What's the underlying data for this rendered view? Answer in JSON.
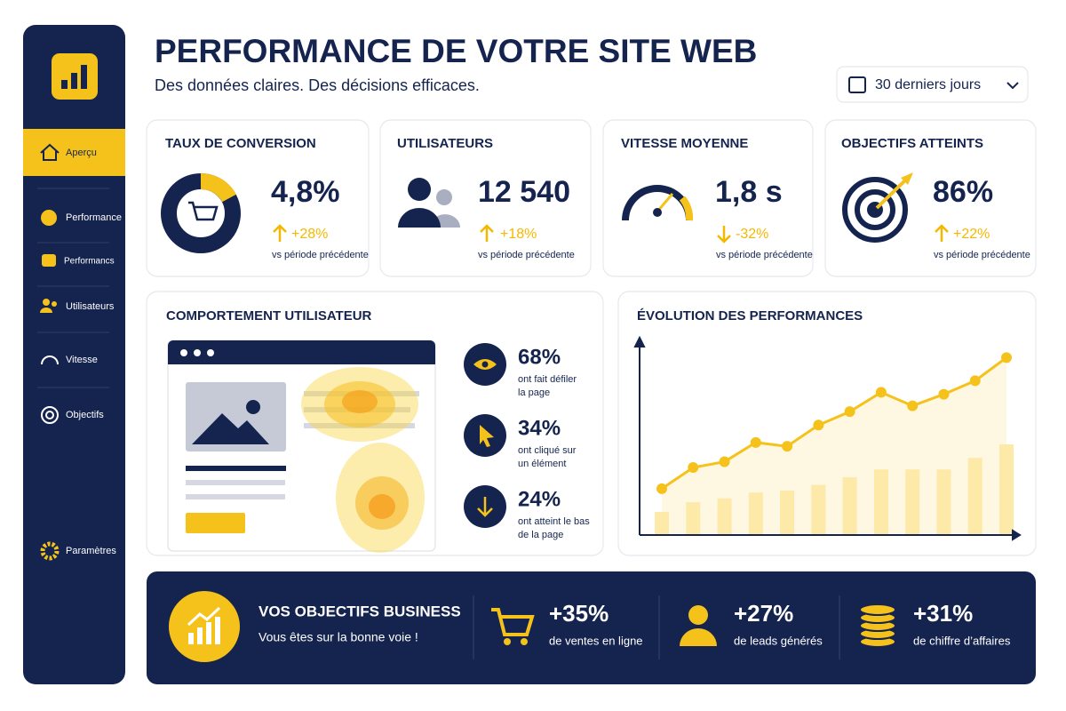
{
  "header": {
    "title": "PERFORMANCE DE VOTRE SITE WEB",
    "subtitle": "Des données claires. Des décisions efficaces.",
    "date_range": "30 derniers jours"
  },
  "sidebar": {
    "items": [
      "Aperçu",
      "Performance",
      "Performancs",
      "Utilisateurs",
      "Vitesse",
      "Objectifs"
    ],
    "settings": "Paramètres"
  },
  "kpis": [
    {
      "label": "TAUX DE CONVERSION",
      "value": "4,8%",
      "change": "+28%",
      "note": "vs période précédente"
    },
    {
      "label": "UTILISATEURS",
      "value": "12 540",
      "change": "+18%",
      "note": "vs période précédente"
    },
    {
      "label": "VITESSE MOYENNE",
      "value": "1,8 s",
      "change": "-32%",
      "note": "vs période précédente"
    },
    {
      "label": "OBJECTIFS ATTEINTS",
      "value": "86%",
      "change": "+22%",
      "note": "vs période précédente"
    }
  ],
  "behavior": {
    "title": "COMPORTEMENT UTILISATEUR",
    "stats": [
      {
        "value": "68%",
        "lines": [
          "ont fait défiler",
          "la page"
        ]
      },
      {
        "value": "34%",
        "lines": [
          "ont cliqué sur",
          "un élément"
        ]
      },
      {
        "value": "24%",
        "lines": [
          "ont atteint le bas",
          "de la page"
        ]
      }
    ]
  },
  "evolution": {
    "title": "ÉVOLUTION DES PERFORMANCES",
    "chart_data": {
      "type": "line",
      "values": [
        24,
        35,
        38,
        48,
        46,
        57,
        64,
        74,
        67,
        73,
        80,
        92
      ],
      "bar_values": [
        12,
        17,
        19,
        22,
        23,
        26,
        30,
        34,
        34,
        34,
        40,
        47
      ],
      "ylim": [
        0,
        100
      ],
      "color": "#f5c21b",
      "bar_color": "#fde9a8"
    }
  },
  "banner": {
    "title": "VOS OBJECTIFS BUSINESS",
    "subtitle": "Vous êtes sur la bonne voie !",
    "stats": [
      {
        "value": "+35%",
        "text": "de ventes en ligne"
      },
      {
        "value": "+27%",
        "text": "de leads générés"
      },
      {
        "value": "+31%",
        "text": "de chiffre d’affaires"
      }
    ]
  }
}
